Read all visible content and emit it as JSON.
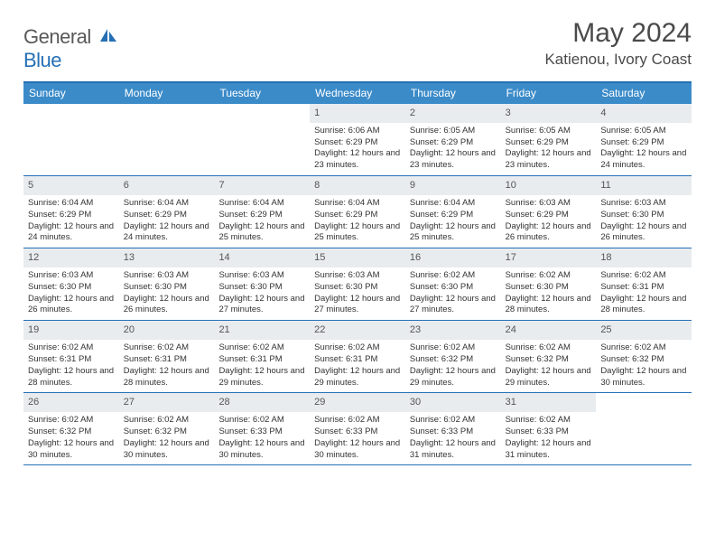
{
  "logo": {
    "word1": "General",
    "word2": "Blue"
  },
  "title": "May 2024",
  "location": "Katienou, Ivory Coast",
  "colors": {
    "header_bg": "#3b8bc9",
    "accent": "#2570b4",
    "date_bg": "#e8ecef",
    "text": "#333333",
    "title_text": "#4a4a4a"
  },
  "day_headers": [
    "Sunday",
    "Monday",
    "Tuesday",
    "Wednesday",
    "Thursday",
    "Friday",
    "Saturday"
  ],
  "weeks": [
    [
      {
        "n": "",
        "sr": "",
        "ss": "",
        "d": ""
      },
      {
        "n": "",
        "sr": "",
        "ss": "",
        "d": ""
      },
      {
        "n": "",
        "sr": "",
        "ss": "",
        "d": ""
      },
      {
        "n": "1",
        "sr": "Sunrise: 6:06 AM",
        "ss": "Sunset: 6:29 PM",
        "d": "Daylight: 12 hours and 23 minutes."
      },
      {
        "n": "2",
        "sr": "Sunrise: 6:05 AM",
        "ss": "Sunset: 6:29 PM",
        "d": "Daylight: 12 hours and 23 minutes."
      },
      {
        "n": "3",
        "sr": "Sunrise: 6:05 AM",
        "ss": "Sunset: 6:29 PM",
        "d": "Daylight: 12 hours and 23 minutes."
      },
      {
        "n": "4",
        "sr": "Sunrise: 6:05 AM",
        "ss": "Sunset: 6:29 PM",
        "d": "Daylight: 12 hours and 24 minutes."
      }
    ],
    [
      {
        "n": "5",
        "sr": "Sunrise: 6:04 AM",
        "ss": "Sunset: 6:29 PM",
        "d": "Daylight: 12 hours and 24 minutes."
      },
      {
        "n": "6",
        "sr": "Sunrise: 6:04 AM",
        "ss": "Sunset: 6:29 PM",
        "d": "Daylight: 12 hours and 24 minutes."
      },
      {
        "n": "7",
        "sr": "Sunrise: 6:04 AM",
        "ss": "Sunset: 6:29 PM",
        "d": "Daylight: 12 hours and 25 minutes."
      },
      {
        "n": "8",
        "sr": "Sunrise: 6:04 AM",
        "ss": "Sunset: 6:29 PM",
        "d": "Daylight: 12 hours and 25 minutes."
      },
      {
        "n": "9",
        "sr": "Sunrise: 6:04 AM",
        "ss": "Sunset: 6:29 PM",
        "d": "Daylight: 12 hours and 25 minutes."
      },
      {
        "n": "10",
        "sr": "Sunrise: 6:03 AM",
        "ss": "Sunset: 6:29 PM",
        "d": "Daylight: 12 hours and 26 minutes."
      },
      {
        "n": "11",
        "sr": "Sunrise: 6:03 AM",
        "ss": "Sunset: 6:30 PM",
        "d": "Daylight: 12 hours and 26 minutes."
      }
    ],
    [
      {
        "n": "12",
        "sr": "Sunrise: 6:03 AM",
        "ss": "Sunset: 6:30 PM",
        "d": "Daylight: 12 hours and 26 minutes."
      },
      {
        "n": "13",
        "sr": "Sunrise: 6:03 AM",
        "ss": "Sunset: 6:30 PM",
        "d": "Daylight: 12 hours and 26 minutes."
      },
      {
        "n": "14",
        "sr": "Sunrise: 6:03 AM",
        "ss": "Sunset: 6:30 PM",
        "d": "Daylight: 12 hours and 27 minutes."
      },
      {
        "n": "15",
        "sr": "Sunrise: 6:03 AM",
        "ss": "Sunset: 6:30 PM",
        "d": "Daylight: 12 hours and 27 minutes."
      },
      {
        "n": "16",
        "sr": "Sunrise: 6:02 AM",
        "ss": "Sunset: 6:30 PM",
        "d": "Daylight: 12 hours and 27 minutes."
      },
      {
        "n": "17",
        "sr": "Sunrise: 6:02 AM",
        "ss": "Sunset: 6:30 PM",
        "d": "Daylight: 12 hours and 28 minutes."
      },
      {
        "n": "18",
        "sr": "Sunrise: 6:02 AM",
        "ss": "Sunset: 6:31 PM",
        "d": "Daylight: 12 hours and 28 minutes."
      }
    ],
    [
      {
        "n": "19",
        "sr": "Sunrise: 6:02 AM",
        "ss": "Sunset: 6:31 PM",
        "d": "Daylight: 12 hours and 28 minutes."
      },
      {
        "n": "20",
        "sr": "Sunrise: 6:02 AM",
        "ss": "Sunset: 6:31 PM",
        "d": "Daylight: 12 hours and 28 minutes."
      },
      {
        "n": "21",
        "sr": "Sunrise: 6:02 AM",
        "ss": "Sunset: 6:31 PM",
        "d": "Daylight: 12 hours and 29 minutes."
      },
      {
        "n": "22",
        "sr": "Sunrise: 6:02 AM",
        "ss": "Sunset: 6:31 PM",
        "d": "Daylight: 12 hours and 29 minutes."
      },
      {
        "n": "23",
        "sr": "Sunrise: 6:02 AM",
        "ss": "Sunset: 6:32 PM",
        "d": "Daylight: 12 hours and 29 minutes."
      },
      {
        "n": "24",
        "sr": "Sunrise: 6:02 AM",
        "ss": "Sunset: 6:32 PM",
        "d": "Daylight: 12 hours and 29 minutes."
      },
      {
        "n": "25",
        "sr": "Sunrise: 6:02 AM",
        "ss": "Sunset: 6:32 PM",
        "d": "Daylight: 12 hours and 30 minutes."
      }
    ],
    [
      {
        "n": "26",
        "sr": "Sunrise: 6:02 AM",
        "ss": "Sunset: 6:32 PM",
        "d": "Daylight: 12 hours and 30 minutes."
      },
      {
        "n": "27",
        "sr": "Sunrise: 6:02 AM",
        "ss": "Sunset: 6:32 PM",
        "d": "Daylight: 12 hours and 30 minutes."
      },
      {
        "n": "28",
        "sr": "Sunrise: 6:02 AM",
        "ss": "Sunset: 6:33 PM",
        "d": "Daylight: 12 hours and 30 minutes."
      },
      {
        "n": "29",
        "sr": "Sunrise: 6:02 AM",
        "ss": "Sunset: 6:33 PM",
        "d": "Daylight: 12 hours and 30 minutes."
      },
      {
        "n": "30",
        "sr": "Sunrise: 6:02 AM",
        "ss": "Sunset: 6:33 PM",
        "d": "Daylight: 12 hours and 31 minutes."
      },
      {
        "n": "31",
        "sr": "Sunrise: 6:02 AM",
        "ss": "Sunset: 6:33 PM",
        "d": "Daylight: 12 hours and 31 minutes."
      },
      {
        "n": "",
        "sr": "",
        "ss": "",
        "d": ""
      }
    ]
  ]
}
